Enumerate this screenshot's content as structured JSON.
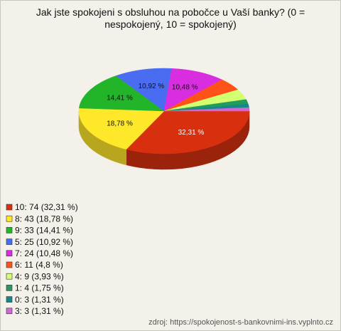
{
  "chart_data": {
    "type": "pie",
    "title": "Jak jste spokojeni s obsluhou na pobočce u Vaší banky? (0 = nespokojený, 10 = spokojený)",
    "categories": [
      "10",
      "8",
      "9",
      "5",
      "7",
      "6",
      "4",
      "1",
      "0",
      "3"
    ],
    "values": [
      32.31,
      18.78,
      14.41,
      10.92,
      10.48,
      4.8,
      3.93,
      1.75,
      1.31,
      1.31
    ],
    "value_labels": [
      "32,31 %",
      "18,78 %",
      "14,41 %",
      "10,92 %",
      "10,48 %",
      null,
      null,
      null,
      null,
      null
    ],
    "legend_labels": [
      "10: 74 (32,31 %)",
      "8: 43 (18,78 %)",
      "9: 33 (14,41 %)",
      "5: 25 (10,92 %)",
      "7: 24 (10,48 %)",
      "6: 11 (4,8 %)",
      "4: 9 (3,93 %)",
      "1: 4 (1,75 %)",
      "0: 3 (1,31 %)",
      "3: 3 (1,31 %)"
    ],
    "colors": [
      "#d8300f",
      "#ffe82a",
      "#22b52a",
      "#4a6cf0",
      "#d92ee0",
      "#ff5218",
      "#d2ff70",
      "#239a5e",
      "#138a8a",
      "#d266d2"
    ],
    "source": "zdroj: https://spokojenost-s-bankovnimi-ins.vyplnto.cz"
  }
}
